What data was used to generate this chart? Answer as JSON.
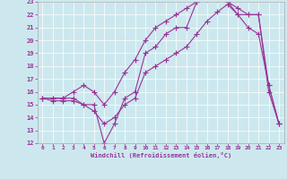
{
  "xlabel": "Windchill (Refroidissement éolien,°C)",
  "bg_color": "#cce8ee",
  "line_color": "#993399",
  "xlim": [
    -0.5,
    23.5
  ],
  "ylim": [
    12,
    23
  ],
  "xtick_labels": [
    "0",
    "1",
    "2",
    "3",
    "4",
    "5",
    "6",
    "7",
    "8",
    "9",
    "10",
    "11",
    "12",
    "13",
    "14",
    "15",
    "16",
    "17",
    "18",
    "19",
    "20",
    "21",
    "22",
    "23"
  ],
  "xtick_vals": [
    0,
    1,
    2,
    3,
    4,
    5,
    6,
    7,
    8,
    9,
    10,
    11,
    12,
    13,
    14,
    15,
    16,
    17,
    18,
    19,
    20,
    21,
    22,
    23
  ],
  "ytick_vals": [
    12,
    13,
    14,
    15,
    16,
    17,
    18,
    19,
    20,
    21,
    22,
    23
  ],
  "line1_x": [
    0,
    1,
    2,
    3,
    4,
    5,
    6,
    7,
    8,
    9,
    10,
    11,
    12,
    13,
    14,
    15,
    16,
    17,
    18,
    19,
    20,
    21,
    22,
    23
  ],
  "line1_y": [
    15.5,
    15.5,
    15.5,
    15.5,
    15.0,
    15.0,
    12.0,
    13.5,
    15.5,
    16.0,
    19.0,
    19.5,
    20.5,
    21.0,
    21.0,
    23.0,
    23.2,
    23.2,
    23.0,
    22.0,
    21.0,
    20.5,
    16.5,
    13.5
  ],
  "line2_x": [
    0,
    1,
    2,
    3,
    4,
    5,
    6,
    7,
    8,
    9,
    10,
    11,
    12,
    13,
    14,
    15,
    16,
    17,
    18,
    19,
    20,
    21,
    22,
    23
  ],
  "line2_y": [
    15.5,
    15.5,
    15.5,
    16.0,
    16.5,
    16.0,
    15.0,
    16.0,
    17.5,
    18.5,
    20.0,
    21.0,
    21.5,
    22.0,
    22.5,
    23.0,
    23.2,
    23.2,
    23.0,
    22.5,
    22.0,
    22.0,
    16.5,
    13.5
  ],
  "line3_x": [
    0,
    1,
    2,
    3,
    4,
    5,
    6,
    7,
    8,
    9,
    10,
    11,
    12,
    13,
    14,
    15,
    16,
    17,
    18,
    19,
    20,
    21,
    22,
    23
  ],
  "line3_y": [
    15.5,
    15.3,
    15.3,
    15.3,
    15.0,
    14.5,
    13.5,
    14.0,
    15.0,
    15.5,
    17.5,
    18.0,
    18.5,
    19.0,
    19.5,
    20.5,
    21.5,
    22.2,
    22.8,
    22.0,
    22.0,
    22.0,
    16.0,
    13.5
  ]
}
